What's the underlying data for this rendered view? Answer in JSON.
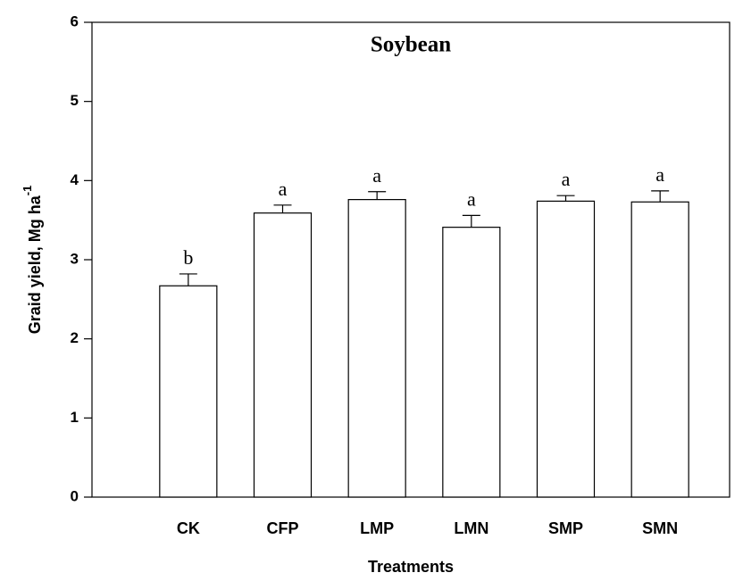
{
  "chart_data": {
    "type": "bar",
    "title": "Soybean",
    "xlabel": "Treatments",
    "ylabel": "Graid yield, Mg ha",
    "ylabel_superscript": "-1",
    "categories": [
      "CK",
      "CFP",
      "LMP",
      "LMN",
      "SMP",
      "SMN"
    ],
    "values": [
      2.67,
      3.59,
      3.76,
      3.41,
      3.74,
      3.73
    ],
    "errors": [
      0.15,
      0.1,
      0.1,
      0.15,
      0.07,
      0.14
    ],
    "significance_letters": [
      "b",
      "a",
      "a",
      "a",
      "a",
      "a"
    ],
    "color": "#ffffff",
    "ylim": [
      0,
      6
    ],
    "yticks": [
      0,
      1,
      2,
      3,
      4,
      5,
      6
    ],
    "grid": false
  }
}
